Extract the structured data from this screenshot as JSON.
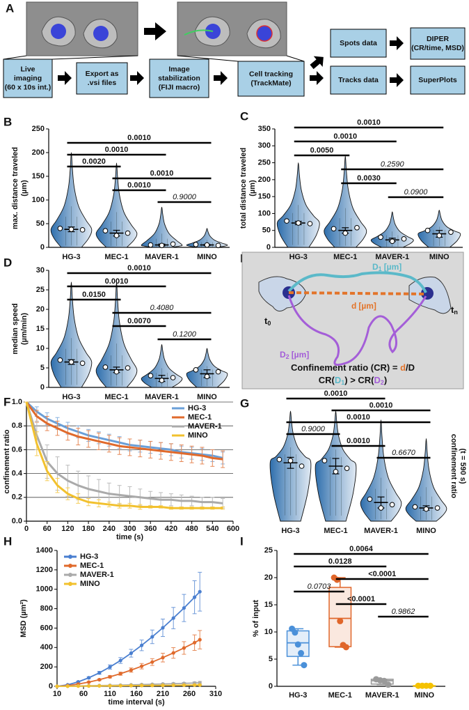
{
  "diagram_a": {
    "panel": "A",
    "boxes": [
      {
        "lines": [
          "Live",
          "imaging",
          "(60 x 10s int.)"
        ]
      },
      {
        "lines": [
          "Export as",
          ".vsi files"
        ]
      },
      {
        "lines": [
          "Image",
          "stabilization",
          "(FIJI macro)"
        ]
      },
      {
        "lines": [
          "Cell tracking",
          "(TrackMate)"
        ]
      },
      {
        "lines": [
          "Spots data"
        ]
      },
      {
        "lines": [
          "DIPER",
          "(CR/time, MSD)"
        ]
      },
      {
        "lines": [
          "Tracks data"
        ]
      },
      {
        "lines": [
          "SuperPlots"
        ]
      }
    ]
  },
  "diagram_e": {
    "panel": "E",
    "d1": {
      "main": "D",
      "sub": "1",
      "unit": "[µm]"
    },
    "d": {
      "main": "d",
      "unit": "[µm]"
    },
    "d2": {
      "main": "D",
      "sub": "2",
      "unit": "[µm]"
    },
    "t0": {
      "main": "t",
      "sub": "0"
    },
    "tn": {
      "main": "t",
      "sub": "n"
    },
    "formula": [
      "Confinement ratio (CR) = ",
      "d",
      "/D"
    ],
    "comparison": [
      "CR(",
      "D",
      "1",
      ") > CR(",
      "D",
      "2",
      ")"
    ]
  },
  "chart_data": [
    {
      "type": "violin",
      "panel": "B",
      "ylabel": [
        "max. distance traveled",
        "(µm)"
      ],
      "categories": [
        "HG-3",
        "MEC-1",
        "MAVER-1",
        "MINO"
      ],
      "color": "#2f6fad",
      "values": [
        38,
        30,
        5,
        5
      ],
      "errors": [
        5,
        6,
        2,
        1
      ],
      "max": [
        200,
        178,
        85,
        40
      ],
      "replicates": [
        [
          40,
          38,
          37
        ],
        [
          35,
          25,
          30
        ],
        [
          5,
          4,
          7
        ],
        [
          6,
          5,
          4
        ]
      ],
      "ylim": [
        0,
        250
      ],
      "yticks": [
        0,
        50,
        100,
        150,
        200,
        250
      ],
      "comparisons": [
        {
          "groups": [
            "HG-3",
            "MINO"
          ],
          "label": "0.0010",
          "italic": false
        },
        {
          "groups": [
            "HG-3",
            "MAVER-1"
          ],
          "label": "0.0010",
          "italic": false
        },
        {
          "groups": [
            "HG-3",
            "MEC-1"
          ],
          "label": "0.0020",
          "italic": false
        },
        {
          "groups": [
            "MEC-1",
            "MINO"
          ],
          "label": "0.0010",
          "italic": false
        },
        {
          "groups": [
            "MEC-1",
            "MAVER-1"
          ],
          "label": "0.0010",
          "italic": false
        },
        {
          "groups": [
            "MAVER-1",
            "MINO"
          ],
          "label": "0.9000",
          "italic": true
        }
      ]
    },
    {
      "type": "violin",
      "panel": "C",
      "ylabel": [
        "total distance traveled",
        "(µm)"
      ],
      "categories": [
        "HG-3",
        "MEC-1",
        "MAVER-1",
        "MINO"
      ],
      "color": "#2f6fad",
      "values": [
        72,
        50,
        22,
        40
      ],
      "errors": [
        5,
        8,
        5,
        10
      ],
      "max": [
        250,
        270,
        105,
        110
      ],
      "replicates": [
        [
          78,
          72,
          70
        ],
        [
          55,
          42,
          58
        ],
        [
          30,
          18,
          25
        ],
        [
          50,
          35,
          45
        ]
      ],
      "ylim": [
        0,
        350
      ],
      "yticks": [
        0,
        50,
        100,
        150,
        200,
        250,
        300,
        350
      ],
      "comparisons": [
        {
          "groups": [
            "HG-3",
            "MINO"
          ],
          "label": "0.0010",
          "italic": false
        },
        {
          "groups": [
            "HG-3",
            "MAVER-1"
          ],
          "label": "0.0010",
          "italic": false
        },
        {
          "groups": [
            "HG-3",
            "MEC-1"
          ],
          "label": "0.0050",
          "italic": false
        },
        {
          "groups": [
            "MEC-1",
            "MINO"
          ],
          "label": "0.2590",
          "italic": true
        },
        {
          "groups": [
            "MEC-1",
            "MAVER-1"
          ],
          "label": "0.0030",
          "italic": false
        },
        {
          "groups": [
            "MAVER-1",
            "MINO"
          ],
          "label": "0.0900",
          "italic": true
        }
      ]
    },
    {
      "type": "violin",
      "panel": "D",
      "ylabel": [
        "median speed",
        "(µm/min)"
      ],
      "categories": [
        "HG-3",
        "MEC-1",
        "MAVER-1",
        "MINO"
      ],
      "color": "#2f6fad",
      "values": [
        6.5,
        4.5,
        2.3,
        3.5
      ],
      "errors": [
        0.6,
        0.7,
        0.8,
        1
      ],
      "max": [
        27,
        27,
        11,
        10
      ],
      "replicates": [
        [
          7,
          6.5,
          6.2
        ],
        [
          5.2,
          4,
          5
        ],
        [
          3,
          1.8,
          2.5
        ],
        [
          4.5,
          2.8,
          4
        ]
      ],
      "ylim": [
        0,
        30
      ],
      "yticks": [
        0,
        5,
        10,
        15,
        20,
        25,
        30
      ],
      "comparisons": [
        {
          "groups": [
            "HG-3",
            "MINO"
          ],
          "label": "0.0010",
          "italic": false
        },
        {
          "groups": [
            "HG-3",
            "MAVER-1"
          ],
          "label": "0.0010",
          "italic": false
        },
        {
          "groups": [
            "HG-3",
            "MEC-1"
          ],
          "label": "0.0150",
          "italic": false
        },
        {
          "groups": [
            "MEC-1",
            "MINO"
          ],
          "label": "0.4080",
          "italic": true
        },
        {
          "groups": [
            "MEC-1",
            "MAVER-1"
          ],
          "label": "0.0070",
          "italic": false
        },
        {
          "groups": [
            "MAVER-1",
            "MINO"
          ],
          "label": "0.1200",
          "italic": true
        }
      ]
    },
    {
      "type": "line",
      "panel": "F",
      "ylabel": [
        "confinement ratio"
      ],
      "xlabel": "time (s)",
      "x": [
        0,
        30,
        60,
        90,
        120,
        150,
        180,
        210,
        240,
        270,
        300,
        330,
        360,
        390,
        420,
        450,
        480,
        510,
        540,
        570
      ],
      "series": [
        {
          "name": "HG-3",
          "color": "#6a9fd8",
          "values": [
            1.0,
            0.92,
            0.86,
            0.82,
            0.78,
            0.75,
            0.72,
            0.7,
            0.68,
            0.66,
            0.64,
            0.63,
            0.62,
            0.61,
            0.6,
            0.58,
            0.57,
            0.56,
            0.55,
            0.53
          ],
          "errors": [
            0,
            0.04,
            0.05,
            0.05,
            0.05,
            0.05,
            0.05,
            0.05,
            0.05,
            0.05,
            0.05,
            0.05,
            0.05,
            0.05,
            0.05,
            0.05,
            0.05,
            0.05,
            0.05,
            0.05
          ]
        },
        {
          "name": "MEC-1",
          "color": "#e06a2c",
          "values": [
            1.0,
            0.88,
            0.82,
            0.78,
            0.74,
            0.71,
            0.69,
            0.67,
            0.65,
            0.63,
            0.62,
            0.61,
            0.6,
            0.59,
            0.58,
            0.57,
            0.56,
            0.55,
            0.53,
            0.52
          ],
          "errors": [
            0,
            0.05,
            0.06,
            0.06,
            0.06,
            0.07,
            0.07,
            0.07,
            0.07,
            0.07,
            0.07,
            0.07,
            0.07,
            0.07,
            0.07,
            0.07,
            0.07,
            0.07,
            0.07,
            0.07
          ]
        },
        {
          "name": "MAVER-1",
          "color": "#aaaaaa",
          "values": [
            1.0,
            0.72,
            0.5,
            0.4,
            0.34,
            0.3,
            0.27,
            0.25,
            0.23,
            0.22,
            0.21,
            0.2,
            0.19,
            0.18,
            0.18,
            0.17,
            0.17,
            0.16,
            0.16,
            0.15
          ],
          "errors": [
            0,
            0.12,
            0.14,
            0.14,
            0.13,
            0.12,
            0.11,
            0.1,
            0.09,
            0.08,
            0.08,
            0.07,
            0.06,
            0.06,
            0.05,
            0.05,
            0.04,
            0.04,
            0.04,
            0.04
          ]
        },
        {
          "name": "MINO",
          "color": "#f2c12e",
          "values": [
            1.0,
            0.65,
            0.42,
            0.3,
            0.23,
            0.19,
            0.16,
            0.15,
            0.14,
            0.13,
            0.13,
            0.12,
            0.12,
            0.12,
            0.11,
            0.11,
            0.11,
            0.11,
            0.11,
            0.11
          ],
          "errors": [
            0,
            0.1,
            0.08,
            0.06,
            0.05,
            0.04,
            0.03,
            0.03,
            0.02,
            0.02,
            0.02,
            0.02,
            0.01,
            0.01,
            0.01,
            0.01,
            0.01,
            0.01,
            0.01,
            0.01
          ]
        }
      ],
      "xlim": [
        0,
        600
      ],
      "xticks": [
        0,
        60,
        120,
        180,
        240,
        300,
        360,
        420,
        480,
        540,
        600
      ],
      "ylim": [
        0,
        1
      ],
      "yticks": [
        {
          "value": 0,
          "label": "0.0"
        },
        0.2,
        0.4,
        0.6,
        0.8,
        {
          "value": 1,
          "label": "1.0"
        }
      ],
      "grid": true,
      "markers": false,
      "legend": "top-right"
    },
    {
      "type": "violin",
      "panel": "G",
      "ylabel": [
        "confinement ratio",
        "(t = 590 s)"
      ],
      "ylabel_side": "right",
      "categories": [
        "HG-3",
        "MEC-1",
        "MAVER-1",
        "MINO"
      ],
      "color": "#2f6fad",
      "values": [
        0.53,
        0.5,
        0.17,
        0.12
      ],
      "errors": [
        0.05,
        0.07,
        0.05,
        0.02
      ],
      "max": [
        1.0,
        1.0,
        0.92,
        0.75
      ],
      "replicates": [
        [
          0.56,
          0.55,
          0.5
        ],
        [
          0.55,
          0.45,
          0.48
        ],
        [
          0.2,
          0.12,
          0.15
        ],
        [
          0.13,
          0.11,
          0.12
        ]
      ],
      "ylim": [
        0,
        1
      ],
      "comparisons": [
        {
          "groups": [
            "HG-3",
            "MAVER-1"
          ],
          "label": "0.0010",
          "italic": false
        },
        {
          "groups": [
            "MEC-1",
            "MINO"
          ],
          "label": "0.0010",
          "italic": false
        },
        {
          "groups": [
            "HG-3",
            "MINO"
          ],
          "label": "0.0010",
          "italic": false
        },
        {
          "groups": [
            "HG-3",
            "MEC-1"
          ],
          "label": "0.9000",
          "italic": true
        },
        {
          "groups": [
            "MEC-1",
            "MAVER-1"
          ],
          "label": "0.0010",
          "italic": false
        },
        {
          "groups": [
            "MAVER-1",
            "MINO"
          ],
          "label": "0.6670",
          "italic": true
        }
      ]
    },
    {
      "type": "line",
      "panel": "H",
      "ylabel": [
        "MSD (µm²)"
      ],
      "xlabel": "time interval (s)",
      "x": [
        10,
        30,
        50,
        70,
        90,
        110,
        130,
        150,
        170,
        190,
        210,
        230,
        250,
        270,
        280
      ],
      "series": [
        {
          "name": "HG-3",
          "color": "#4a7fd0",
          "values": [
            0,
            15,
            46,
            88,
            139,
            199,
            266,
            341,
            422,
            510,
            603,
            703,
            807,
            918,
            975
          ],
          "errors": [
            0,
            3,
            6,
            10,
            15,
            22,
            30,
            40,
            55,
            70,
            90,
            110,
            140,
            170,
            200
          ]
        },
        {
          "name": "MEC-1",
          "color": "#e06a2c",
          "values": [
            0,
            7,
            23,
            43,
            68,
            98,
            130,
            167,
            207,
            250,
            296,
            344,
            395,
            450,
            480
          ],
          "errors": [
            0,
            2,
            4,
            6,
            9,
            12,
            16,
            22,
            28,
            35,
            45,
            55,
            65,
            80,
            95
          ]
        },
        {
          "name": "MAVER-1",
          "color": "#aaaaaa",
          "values": [
            0,
            2,
            4,
            6,
            8,
            10,
            12,
            15,
            18,
            21,
            24,
            27,
            30,
            34,
            37
          ],
          "errors": [
            0,
            1,
            1,
            2,
            2,
            3,
            3,
            4,
            5,
            6,
            7,
            8,
            10,
            12,
            14
          ]
        },
        {
          "name": "MINO",
          "color": "#f2c12e",
          "values": [
            0,
            1,
            2,
            3,
            4,
            5,
            6,
            7,
            8,
            9,
            10,
            11,
            12,
            13,
            14
          ],
          "errors": [
            0,
            1,
            1,
            1,
            2,
            2,
            2,
            3,
            3,
            3,
            4,
            4,
            5,
            5,
            6
          ]
        }
      ],
      "xlim": [
        10,
        310
      ],
      "xticks": [
        10,
        60,
        110,
        160,
        210,
        260,
        310
      ],
      "ylim": [
        0,
        1400
      ],
      "yticks": [
        0,
        200,
        400,
        600,
        800,
        1000,
        1200,
        1400
      ],
      "grid": false,
      "markers": true,
      "legend": "top-left"
    },
    {
      "type": "box",
      "panel": "I",
      "ylabel": [
        "% of input"
      ],
      "categories": [
        "HG-3",
        "MEC-1",
        "MAVER-1",
        "MINO"
      ],
      "boxes": [
        {
          "color": "#4a90d9",
          "low": 3.9,
          "q1": 5.5,
          "median": 8,
          "q3": 10.2,
          "high": 10.6,
          "points": [
            10.6,
            9.9,
            7.7,
            6.1,
            3.9
          ]
        },
        {
          "color": "#e0662a",
          "low": 7.2,
          "q1": 7.3,
          "median": 12.5,
          "q3": 18.2,
          "high": 20,
          "points": [
            20,
            19.6,
            12,
            7.6,
            7.2
          ]
        },
        {
          "color": "#9a9a9a",
          "low": 0.3,
          "q1": 0.4,
          "median": 1.05,
          "q3": 1.3,
          "high": 1.3,
          "points": [
            1.3,
            1.1,
            1.0,
            0.3
          ]
        },
        {
          "color": "#f5c200",
          "low": 0.05,
          "q1": 0.05,
          "median": 0.1,
          "q3": 0.12,
          "high": 0.12,
          "points": [
            0.1,
            0.1,
            0.1,
            0.1
          ]
        }
      ],
      "ylim": [
        0,
        25
      ],
      "yticks": [
        0,
        5,
        10,
        15,
        20,
        25
      ],
      "comparisons": [
        {
          "groups": [
            "HG-3",
            "MINO"
          ],
          "label": "0.0064",
          "italic": false
        },
        {
          "groups": [
            "HG-3",
            "MAVER-1"
          ],
          "label": "0.0128",
          "italic": false
        },
        {
          "groups": [
            "MEC-1",
            "MINO"
          ],
          "label": "<0.0001",
          "italic": false
        },
        {
          "groups": [
            "HG-3",
            "MEC-1"
          ],
          "label": "0.0703",
          "italic": true
        },
        {
          "groups": [
            "MEC-1",
            "MAVER-1"
          ],
          "label": "<0.0001",
          "italic": false
        },
        {
          "groups": [
            "MAVER-1",
            "MINO"
          ],
          "label": "0.9862",
          "italic": true
        }
      ]
    }
  ]
}
